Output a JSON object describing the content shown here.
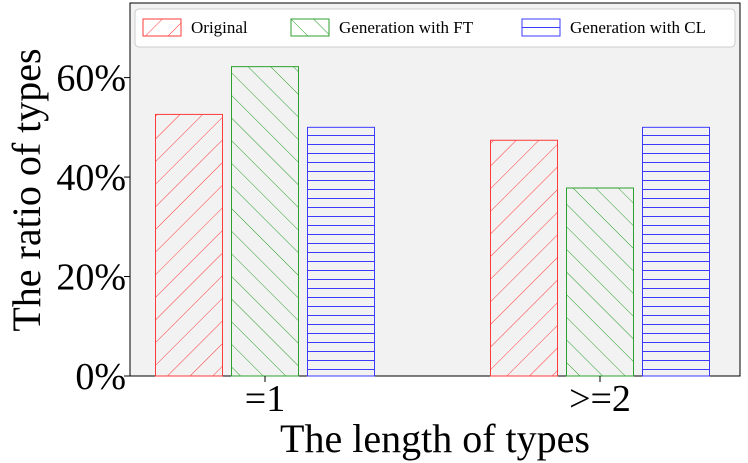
{
  "chart_data": {
    "type": "bar",
    "categories": [
      "=1",
      ">=2"
    ],
    "series": [
      {
        "name": "Original",
        "values": [
          52.6,
          47.4
        ],
        "color": "#ff3b3b",
        "hatch": "diagonal-forward"
      },
      {
        "name": "Generation with FT",
        "values": [
          62.2,
          37.8
        ],
        "color": "#2ca02c",
        "hatch": "diagonal-backward"
      },
      {
        "name": "Generation with CL",
        "values": [
          50.0,
          50.0
        ],
        "color": "#3b3bff",
        "hatch": "horizontal"
      }
    ],
    "xlabel": "The length of types",
    "ylabel": "The ratio of types",
    "ylim": [
      0,
      75
    ],
    "yticks": [
      0,
      20,
      40,
      60
    ],
    "ytick_labels": [
      "0%",
      "20%",
      "40%",
      "60%"
    ],
    "grid": false,
    "legend_position": "top",
    "plot_background": "#f2f2f2"
  }
}
